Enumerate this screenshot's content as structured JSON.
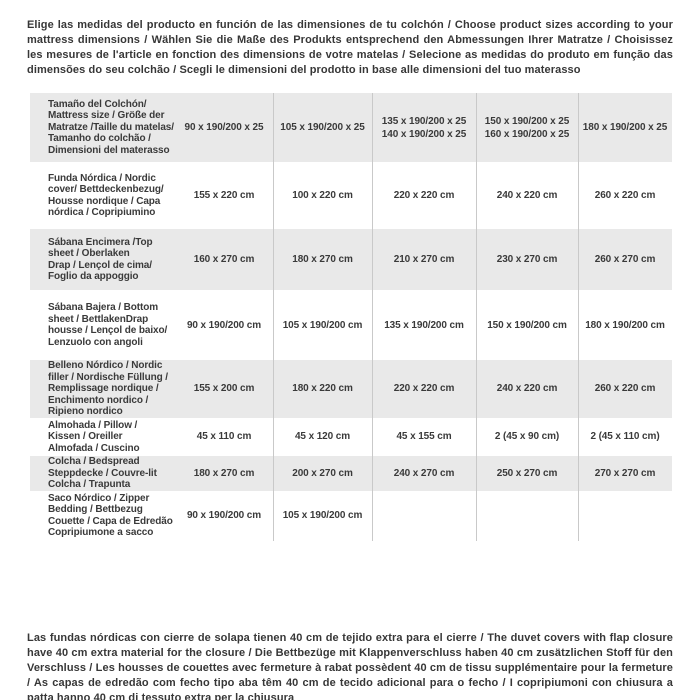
{
  "header": {
    "text": "Elige las medidas del producto en función de las dimensiones de tu colchón / Choose product sizes according to your mattress dimensions / Wählen Sie die Maße des Produkts entsprechend den Abmessungen Ihrer Matratze / Choisissez les mesures de l'article en fonction des dimensions de votre matelas / Selecione as medidas do produto em função das dimensões do seu colchão / Scegli le dimensioni del prodotto in base alle dimensioni del tuo materasso"
  },
  "table": {
    "rows": [
      {
        "label": "Tamaño del Colchón/\nMattress size / Größe der\nMatratze /Taille du matelas/\nTamanho do colchão /\nDimensioni del materasso",
        "cells": [
          "90 x 190/200 x 25",
          "105 x 190/200 x 25",
          "135 x 190/200 x 25\n140 x 190/200 x 25",
          "150 x 190/200 x 25\n160 x 190/200 x 25",
          "180 x 190/200 x 25"
        ]
      },
      {
        "label": "Funda Nórdica /  Nordic\ncover/ Bettdeckenbezug/\nHousse nordique  / Capa\nnórdica / Copripiumino",
        "cells": [
          "155 x 220 cm",
          "100 x 220 cm",
          "220 x 220 cm",
          "240 x 220 cm",
          "260 x 220 cm"
        ]
      },
      {
        "label": "Sábana Encimera /Top\nsheet / Oberlaken\nDrap / Lençol de cima/\nFoglio da appoggio",
        "cells": [
          "160 x 270 cm",
          "180 x 270 cm",
          "210 x 270 cm",
          "230 x 270 cm",
          "260 x 270 cm"
        ]
      },
      {
        "label": "Sábana Bajera / Bottom\nsheet / BettlakenDrap\nhousse / Lençol de baixo/\nLenzuolo con angoli",
        "cells": [
          "90 x 190/200 cm",
          "105 x 190/200 cm",
          "135 x 190/200 cm",
          "150 x 190/200 cm",
          "180 x 190/200 cm"
        ]
      },
      {
        "label": "Belleno Nórdico / Nordic\nfiller / Nordische Füllung /\nRemplissage nordique /\nEnchimento nordico /\nRipieno nordico",
        "cells": [
          "155 x 200 cm",
          "180 x 220 cm",
          "220 x 220 cm",
          "240 x 220 cm",
          "260 x 220 cm"
        ]
      },
      {
        "label": "Almohada  / Pillow /\nKissen / Oreiller\nAlmofada / Cuscino",
        "cells": [
          "45 x 110 cm",
          "45 x 120 cm",
          "45 x 155 cm",
          "2 (45 x 90 cm)",
          "2 (45 x 110 cm)"
        ]
      },
      {
        "label": "Colcha / Bedspread\nSteppdecke / Couvre-lit\nColcha / Trapunta",
        "cells": [
          "180 x 270 cm",
          "200 x 270 cm",
          "240 x 270 cm",
          "250 x 270 cm",
          "270 x 270 cm"
        ]
      },
      {
        "label": "Saco Nórdico / Zipper\nBedding / Bettbezug\nCouette  / Capa de Edredão\nCopripiumone a sacco",
        "cells": [
          "90 x 190/200 cm",
          "105 x 190/200 cm",
          "",
          "",
          ""
        ]
      }
    ]
  },
  "footer": {
    "text": "Las fundas nórdicas con cierre de solapa tienen 40 cm de tejido extra para el cierre  / The duvet covers with flap closure have 40 cm extra material for the closure / Die Bettbezüge mit Klappenverschluss haben 40 cm zusätzlichen Stoff für den Verschluss / Les housses de couettes avec fermeture à rabat possèdent 40 cm de tissu supplémentaire pour la fermeture / As capas de edredão com fecho tipo aba têm 40 cm de tecido adicional para o fecho / I copripiumoni con chiusura a patta hanno 40 cm di tessuto extra per la chiusura"
  },
  "colors": {
    "row_shade": "#e9e9e9",
    "divider": "#c9c9c9",
    "text": "#3a3a3a"
  }
}
